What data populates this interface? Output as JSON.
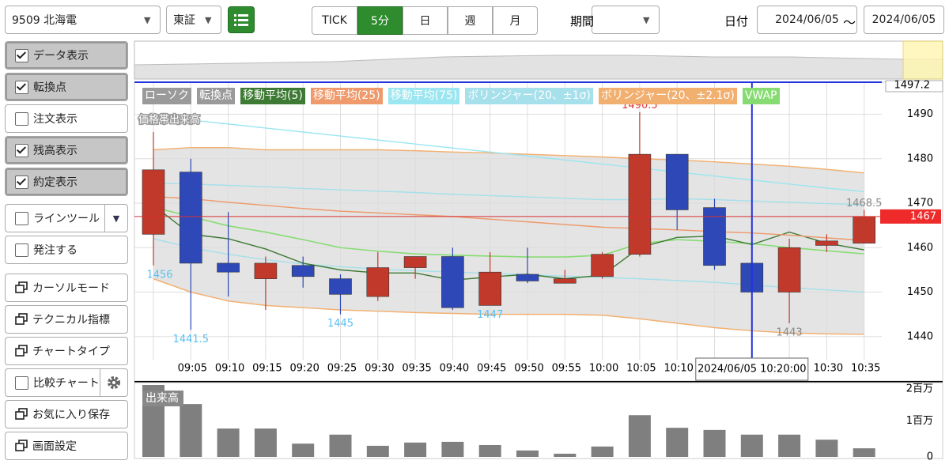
{
  "toolbar": {
    "symbol": "9509 北海電",
    "market": "東証",
    "periods": [
      "TICK",
      "5分",
      "日",
      "週",
      "月"
    ],
    "selected_period": "5分",
    "range_label": "期間",
    "date_label": "日付",
    "date_from": "2024/06/05",
    "separator": "〜",
    "date_to": "2024/06/05"
  },
  "sidebar": [
    {
      "label": "データ表示",
      "checked": true
    },
    {
      "label": "転換点",
      "checked": true
    },
    {
      "label": "注文表示",
      "checked": false
    },
    {
      "label": "残高表示",
      "checked": true
    },
    {
      "label": "約定表示",
      "checked": true
    },
    {
      "label": "ラインツール",
      "checked": false,
      "menu": true
    },
    {
      "label": "発注する",
      "checked": false
    },
    {
      "label": "カーソルモード"
    },
    {
      "label": "テクニカル指標"
    },
    {
      "label": "チャートタイプ"
    },
    {
      "label": "比較チャート",
      "checked": false,
      "settings": true
    },
    {
      "label": "お気に入り保存"
    },
    {
      "label": "画面設定"
    }
  ],
  "chart_data": {
    "type": "candlestick",
    "categories": [
      null,
      "09:05",
      "09:10",
      "09:15",
      "09:20",
      "09:25",
      "09:30",
      "09:35",
      "09:40",
      "09:45",
      "09:50",
      "09:55",
      "10:00",
      "10:05",
      "10:10",
      null,
      null,
      null,
      "10:30",
      "10:35"
    ],
    "candles": {
      "name": "ローソク",
      "up_color": "#c0392b",
      "down_color": "#2e48b8",
      "open": [
        1463,
        1477,
        1456.5,
        1453,
        1456,
        1453,
        1449,
        1455.5,
        1458,
        1447,
        1454,
        1452,
        1453.5,
        1458.5,
        1481,
        1469,
        1456.5,
        1450,
        1460.5,
        1461
      ],
      "high": [
        1486,
        1480,
        1468,
        1458,
        1458,
        1454,
        1459,
        1458,
        1460,
        1459,
        1460,
        1455,
        1459,
        1490.5,
        1481,
        1471,
        1458,
        1462,
        1463,
        1468.5
      ],
      "low": [
        1456,
        1441.5,
        1449,
        1446,
        1451,
        1445,
        1448,
        1453,
        1446,
        1447,
        1452,
        1452,
        1453,
        1458,
        1464,
        1455,
        1447,
        1443,
        1459,
        1461
      ],
      "close": [
        1477.5,
        1456.5,
        1454.5,
        1456.5,
        1453.5,
        1449.5,
        1455.5,
        1458,
        1446.5,
        1454.5,
        1452.5,
        1453,
        1458.5,
        1481,
        1468.5,
        1456,
        1450,
        1460,
        1461.5,
        1467
      ]
    },
    "turning_points": {
      "name": "転換点"
    },
    "series": [
      {
        "name": "移動平均(5)",
        "color": "#3d7a33",
        "values": [
          1469.5,
          1463,
          1462,
          1459.7,
          1456.5,
          1455,
          1454.3,
          1454.3,
          1452.7,
          1453.4,
          1454,
          1453,
          1453.8,
          1460,
          1462.3,
          1462.6,
          1460.7,
          1463.5,
          1461,
          1459.5
        ]
      },
      {
        "name": "移動平均(25)",
        "color": "#ee9a6c",
        "values": [
          1471.5,
          1471,
          1470.2,
          1469.5,
          1468.8,
          1468.2,
          1467.8,
          1467.4,
          1467,
          1466.4,
          1465.8,
          1465.2,
          1464.6,
          1464.3,
          1464,
          1463.6,
          1463.3,
          1462.8,
          1462.2,
          1461.6
        ]
      },
      {
        "name": "移動平均(75)",
        "color": "#9be6f0",
        "values": [
          1489.6,
          1488.7,
          1487.8,
          1486.9,
          1486,
          1485.1,
          1484.2,
          1483.3,
          1482.4,
          1481.5,
          1480.6,
          1479.7,
          1478.8,
          1477.9,
          1477,
          1476.1,
          1475.2,
          1474.3,
          1473.4,
          1472.6
        ]
      }
    ],
    "bands": [
      {
        "name": "ボリンジャー(20、±1σ)",
        "color": "#a6e0ea",
        "upper": [
          1474.5,
          1474.3,
          1474,
          1473.7,
          1473.3,
          1473,
          1472.7,
          1472.4,
          1472,
          1471.7,
          1471.4,
          1471.1,
          1470.8,
          1470.8,
          1471,
          1470.8,
          1470.5,
          1470.2,
          1469.9,
          1469.6
        ],
        "lower": [
          1462,
          1460,
          1458.5,
          1457.3,
          1456.3,
          1455.7,
          1455.2,
          1454.8,
          1454.5,
          1454.2,
          1453.9,
          1453.6,
          1453.3,
          1453,
          1452.6,
          1452.2,
          1451.6,
          1451,
          1450.5,
          1450
        ]
      },
      {
        "name": "ボリンジャー(20、±2.1σ)",
        "color": "#f2b070",
        "upper": [
          1482,
          1482.5,
          1482.5,
          1482,
          1482,
          1482,
          1482,
          1481.8,
          1481.5,
          1481.3,
          1481,
          1480.7,
          1480.4,
          1480,
          1479.7,
          1479.3,
          1478.8,
          1478.3,
          1477.6,
          1476.8
        ],
        "lower": [
          1453,
          1450,
          1448,
          1447,
          1446.5,
          1446,
          1445.7,
          1445.4,
          1445.2,
          1445,
          1445,
          1445,
          1444.8,
          1444,
          1443,
          1442,
          1441.3,
          1440.8,
          1440.6,
          1440.5
        ]
      }
    ],
    "vwap": {
      "name": "VWAP",
      "color": "#86dc72",
      "values": [
        1469.1,
        1467,
        1464.9,
        1463.5,
        1461.8,
        1460,
        1459.2,
        1458.6,
        1458.3,
        1458.1,
        1457.9,
        1457.9,
        1458.3,
        1460.9,
        1461.8,
        1461.4,
        1460.9,
        1460,
        1459.3,
        1458.6
      ]
    },
    "price_volume_label": "価格帯出来高",
    "annotations": [
      {
        "value": 1490.5,
        "color": "#e03a3a"
      },
      {
        "value": 1441.5,
        "color": "#5bc0f0"
      },
      {
        "value": 1445,
        "color": "#5bc0f0"
      },
      {
        "value": 1447,
        "color": "#5bc0f0"
      },
      {
        "value": 1443,
        "color": "#888888"
      },
      {
        "value": 1468.5,
        "color": "#888888"
      },
      {
        "value": 1456,
        "color": "#5bc0f0"
      }
    ],
    "ylim": [
      1434.8,
      1497.2
    ],
    "yticks": [
      1440,
      1450,
      1460,
      1470,
      1480,
      1490
    ],
    "current_price": 1467,
    "cursor": {
      "time": "2024/06/05 10:20:00",
      "price": 1497.2
    },
    "volume": {
      "label": "出来高",
      "color": "#7f7f7f",
      "values": [
        2000000,
        1470000,
        790000,
        790000,
        370000,
        620000,
        310000,
        400000,
        420000,
        330000,
        180000,
        90000,
        290000,
        1160000,
        810000,
        750000,
        620000,
        620000,
        480000,
        240000
      ],
      "ylim": [
        0,
        2000000
      ],
      "yticks": [
        0,
        {
          "value": 1000000,
          "label": "1百万"
        },
        {
          "value": 2000000,
          "label": "2百万"
        }
      ]
    },
    "grid": true
  }
}
